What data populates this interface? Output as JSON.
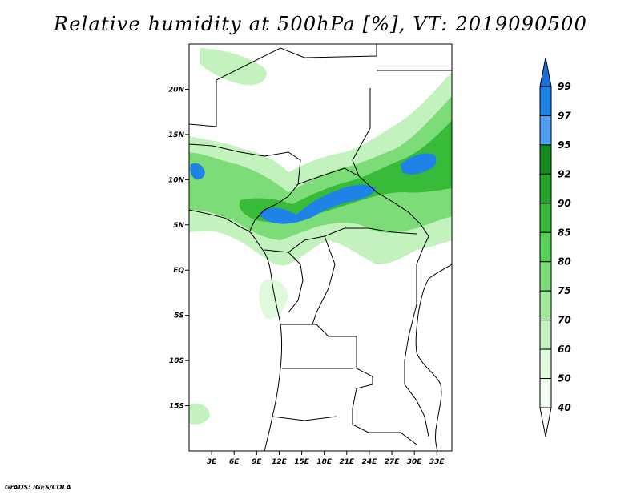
{
  "title": "Relative humidity at 500hPa [%], VT: 2019090500",
  "credit": "GrADS: IGES/COLA",
  "map": {
    "lon_range": [
      0,
      35
    ],
    "lat_range": [
      -20,
      25
    ],
    "lat_ticks": [
      {
        "value": 20,
        "label": "20N"
      },
      {
        "value": 15,
        "label": "15N"
      },
      {
        "value": 10,
        "label": "10N"
      },
      {
        "value": 5,
        "label": "5N"
      },
      {
        "value": 0,
        "label": "EQ"
      },
      {
        "value": -5,
        "label": "5S"
      },
      {
        "value": -10,
        "label": "10S"
      },
      {
        "value": -15,
        "label": "15S"
      }
    ],
    "lon_ticks": [
      {
        "value": 3,
        "label": "3E"
      },
      {
        "value": 6,
        "label": "6E"
      },
      {
        "value": 9,
        "label": "9E"
      },
      {
        "value": 12,
        "label": "12E"
      },
      {
        "value": 15,
        "label": "15E"
      },
      {
        "value": 18,
        "label": "18E"
      },
      {
        "value": 21,
        "label": "21E"
      },
      {
        "value": 24,
        "label": "24E"
      },
      {
        "value": 27,
        "label": "27E"
      },
      {
        "value": 30,
        "label": "30E"
      },
      {
        "value": 33,
        "label": "33E"
      }
    ]
  },
  "colorbar": {
    "levels": [
      "99",
      "97",
      "95",
      "92",
      "90",
      "85",
      "80",
      "75",
      "70",
      "60",
      "50",
      "40"
    ],
    "colors": [
      "#1c6fd7",
      "#1f82e6",
      "#4fa0f0",
      "#138a1b",
      "#25a42a",
      "#39bb3a",
      "#58d158",
      "#7cdd78",
      "#a2e99e",
      "#c3f2bf",
      "#dff9dc",
      "#f1fdf0"
    ]
  }
}
